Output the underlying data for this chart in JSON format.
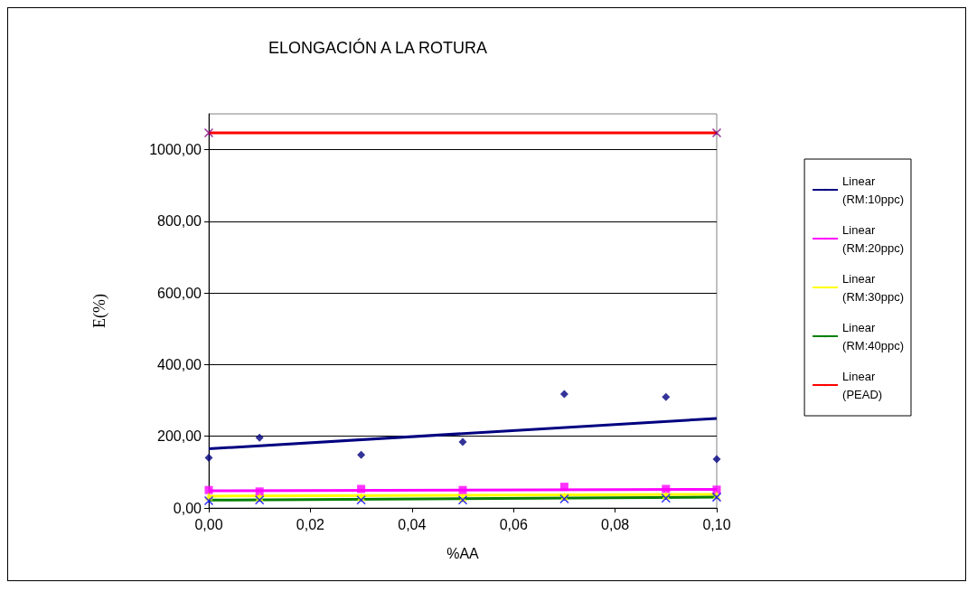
{
  "chart_data": {
    "type": "scatter",
    "title": "ELONGACIÓN A LA ROTURA",
    "xlabel": "%AA",
    "ylabel": "E(%)",
    "xlim": [
      0,
      0.1
    ],
    "xticks": [
      {
        "value": 0,
        "label": "0,00"
      },
      {
        "value": 0.02,
        "label": "0,02"
      },
      {
        "value": 0.04,
        "label": "0,04"
      },
      {
        "value": 0.06,
        "label": "0,06"
      },
      {
        "value": 0.08,
        "label": "0,08"
      },
      {
        "value": 0.1,
        "label": "0,10"
      }
    ],
    "ylim": [
      0,
      1100
    ],
    "yticks": [
      {
        "value": 0,
        "label": "0,00"
      },
      {
        "value": 200,
        "label": "200,00"
      },
      {
        "value": 400,
        "label": "400,00"
      },
      {
        "value": 600,
        "label": "600,00"
      },
      {
        "value": 800,
        "label": "800,00"
      },
      {
        "value": 1000,
        "label": "1000,00"
      }
    ],
    "grid": "y",
    "legend": "right",
    "series": [
      {
        "color": "#000080",
        "marker": "diamond",
        "x": [
          0,
          0.01,
          0.03,
          0.05,
          0.07,
          0.09,
          0.1
        ],
        "values": [
          140,
          196,
          148,
          184,
          318,
          310,
          136
        ]
      },
      {
        "color": "#ff00ff",
        "marker": "square",
        "x": [
          0,
          0.01,
          0.03,
          0.05,
          0.07,
          0.09,
          0.1
        ],
        "values": [
          50,
          46,
          53,
          50,
          59,
          53,
          51
        ]
      },
      {
        "color": "#ffff00",
        "marker": "triangle",
        "x": [
          0,
          0.01,
          0.03,
          0.05,
          0.07,
          0.09,
          0.1
        ],
        "values": [
          32,
          30,
          30,
          28,
          32,
          35,
          36
        ]
      },
      {
        "color": "#0000ff",
        "marker": "cross",
        "x": [
          0,
          0.01,
          0.03,
          0.05,
          0.07,
          0.09,
          0.1
        ],
        "values": [
          20,
          22,
          22,
          22,
          25,
          27,
          30
        ]
      },
      {
        "color": "#800080",
        "marker": "cross",
        "x": [
          0,
          0.1
        ],
        "values": [
          1047,
          1047
        ]
      },
      {
        "type": "line",
        "name": "Linear (RM:10ppc)",
        "color": "#000080",
        "x": [
          0,
          0.1
        ],
        "values": [
          165,
          250
        ]
      },
      {
        "type": "line",
        "name": "Linear (RM:20ppc)",
        "color": "#ff00ff",
        "x": [
          0,
          0.1
        ],
        "values": [
          48,
          52
        ]
      },
      {
        "type": "line",
        "name": "Linear (RM:30ppc)",
        "color": "#ffff00",
        "x": [
          0,
          0.1
        ],
        "values": [
          33,
          38
        ]
      },
      {
        "type": "line",
        "name": "Linear (RM:40ppc)",
        "color": "#008000",
        "x": [
          0,
          0.1
        ],
        "values": [
          22,
          30
        ]
      },
      {
        "type": "line",
        "name": "Linear (PEAD)",
        "color": "#ff0000",
        "x": [
          0,
          0.1
        ],
        "values": [
          1047,
          1047
        ]
      }
    ]
  }
}
